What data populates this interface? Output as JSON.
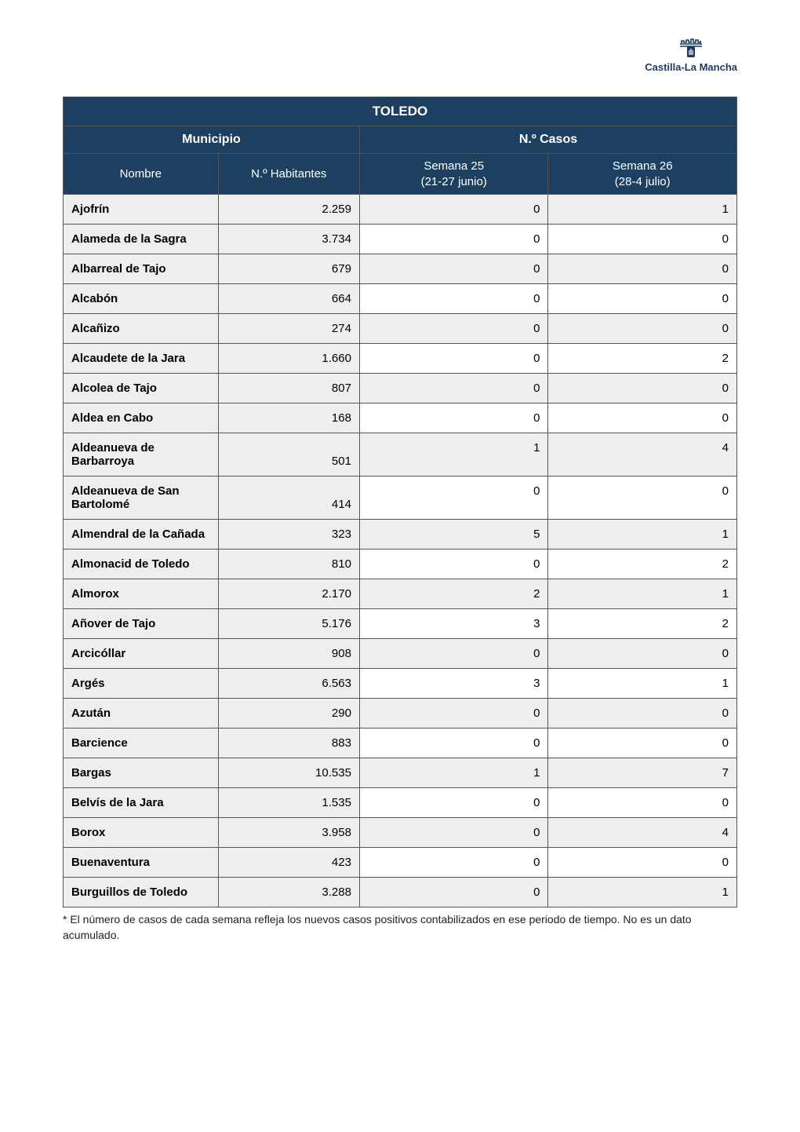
{
  "logo_text": "Castilla-La Mancha",
  "table": {
    "title": "TOLEDO",
    "group_left": "Municipio",
    "group_right": "N.º Casos",
    "columns": {
      "name": "Nombre",
      "hab": "N.º Habitantes",
      "w25_l1": "Semana 25",
      "w25_l2": "(21-27 junio)",
      "w26_l1": "Semana 26",
      "w26_l2": "(28-4 julio)"
    },
    "rows": [
      {
        "name": "Ajofrín",
        "hab": "2.259",
        "w25": "0",
        "w26": "1"
      },
      {
        "name": "Alameda de la Sagra",
        "hab": "3.734",
        "w25": "0",
        "w26": "0"
      },
      {
        "name": "Albarreal de Tajo",
        "hab": "679",
        "w25": "0",
        "w26": "0"
      },
      {
        "name": "Alcabón",
        "hab": "664",
        "w25": "0",
        "w26": "0"
      },
      {
        "name": "Alcañizo",
        "hab": "274",
        "w25": "0",
        "w26": "0"
      },
      {
        "name": "Alcaudete de la Jara",
        "hab": "1.660",
        "w25": "0",
        "w26": "2"
      },
      {
        "name": "Alcolea de Tajo",
        "hab": "807",
        "w25": "0",
        "w26": "0"
      },
      {
        "name": "Aldea en Cabo",
        "hab": "168",
        "w25": "0",
        "w26": "0"
      },
      {
        "name": "Aldeanueva de Barbarroya",
        "hab": "501",
        "w25": "1",
        "w26": "4"
      },
      {
        "name": "Aldeanueva de San Bartolomé",
        "hab": "414",
        "w25": "0",
        "w26": "0"
      },
      {
        "name": "Almendral de la Cañada",
        "hab": "323",
        "w25": "5",
        "w26": "1"
      },
      {
        "name": "Almonacid de Toledo",
        "hab": "810",
        "w25": "0",
        "w26": "2"
      },
      {
        "name": "Almorox",
        "hab": "2.170",
        "w25": "2",
        "w26": "1"
      },
      {
        "name": "Añover de Tajo",
        "hab": "5.176",
        "w25": "3",
        "w26": "2"
      },
      {
        "name": "Arcicóllar",
        "hab": "908",
        "w25": "0",
        "w26": "0"
      },
      {
        "name": "Argés",
        "hab": "6.563",
        "w25": "3",
        "w26": "1"
      },
      {
        "name": "Azután",
        "hab": "290",
        "w25": "0",
        "w26": "0"
      },
      {
        "name": "Barcience",
        "hab": "883",
        "w25": "0",
        "w26": "0"
      },
      {
        "name": "Bargas",
        "hab": "10.535",
        "w25": "1",
        "w26": "7"
      },
      {
        "name": "Belvís de la Jara",
        "hab": "1.535",
        "w25": "0",
        "w26": "0"
      },
      {
        "name": "Borox",
        "hab": "3.958",
        "w25": "0",
        "w26": "4"
      },
      {
        "name": "Buenaventura",
        "hab": "423",
        "w25": "0",
        "w26": "0"
      },
      {
        "name": "Burguillos de Toledo",
        "hab": "3.288",
        "w25": "0",
        "w26": "1"
      }
    ]
  },
  "footnote": "* El número de casos de cada semana refleja los nuevos casos positivos contabilizados en ese periodo de tiempo. No es un dato acumulado.",
  "style": {
    "header_bg": "#1e4060",
    "header_fg": "#ffffff",
    "zebra_bg": "#eeeeee",
    "border": "#555555"
  }
}
